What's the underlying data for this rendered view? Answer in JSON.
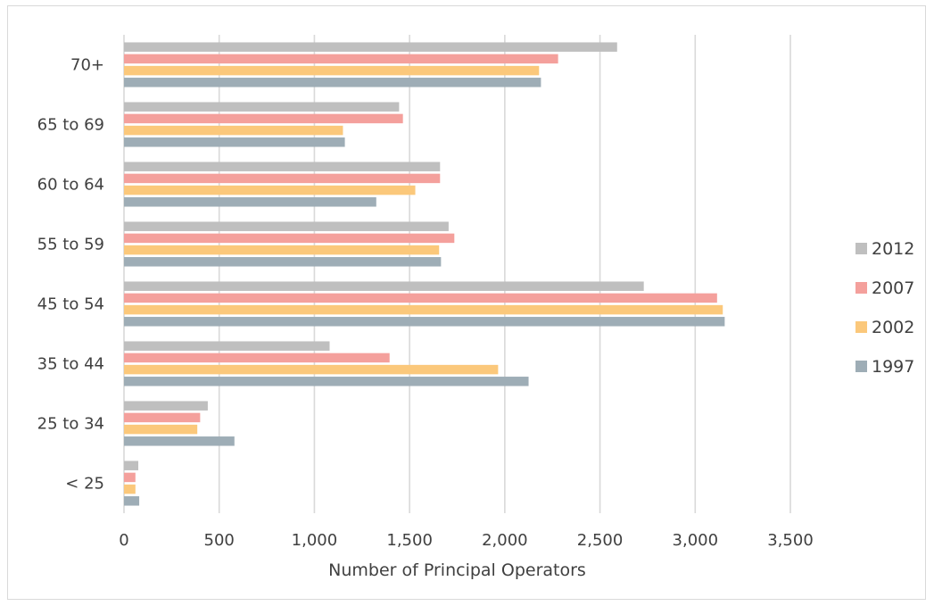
{
  "chart_data": {
    "type": "bar",
    "orientation": "horizontal",
    "title": "",
    "xlabel": "Number of Principal Operators",
    "ylabel": "",
    "categories": [
      "70+",
      "65 to 69",
      "60 to 64",
      "55 to 59",
      "45 to 54",
      "35 to 44",
      "25 to 34",
      "< 25"
    ],
    "series": [
      {
        "name": "2012",
        "color": "#bfbfbf",
        "values": [
          2590,
          1445,
          1660,
          1705,
          2730,
          1080,
          440,
          75
        ]
      },
      {
        "name": "2007",
        "color": "#f4a09c",
        "values": [
          2280,
          1465,
          1660,
          1735,
          3115,
          1395,
          400,
          60
        ]
      },
      {
        "name": "2002",
        "color": "#fbc87b",
        "values": [
          2180,
          1150,
          1530,
          1655,
          3145,
          1965,
          385,
          60
        ]
      },
      {
        "name": "1997",
        "color": "#9eadb6",
        "values": [
          2190,
          1160,
          1325,
          1665,
          3155,
          2125,
          580,
          80
        ]
      }
    ],
    "xlim": [
      0,
      3500
    ],
    "xticks": [
      0,
      500,
      1000,
      1500,
      2000,
      2500,
      3000,
      3500
    ],
    "xtick_labels": [
      "0",
      "500",
      "1,000",
      "1,500",
      "2,000",
      "2,500",
      "3,000",
      "3,500"
    ],
    "grid": "vertical",
    "legend_position": "right"
  }
}
